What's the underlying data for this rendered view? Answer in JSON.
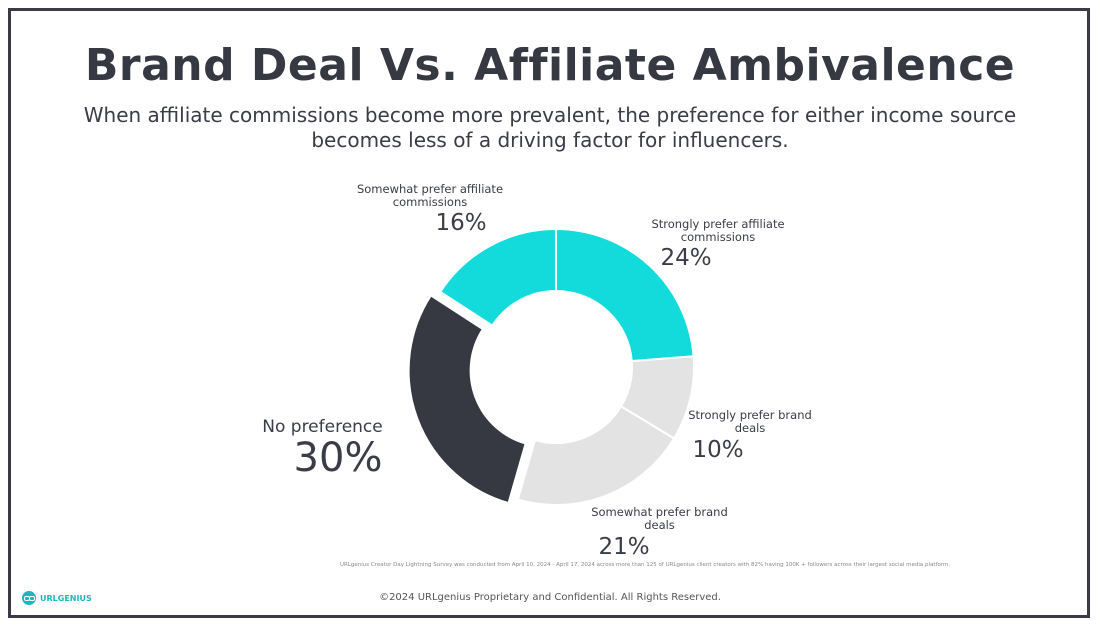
{
  "title": "Brand Deal Vs. Affiliate Ambivalence",
  "subtitle_line1": "When affiliate commissions become more prevalent, the preference for either income source",
  "subtitle_line2": "becomes less of a driving factor for influencers.",
  "chart_data": {
    "type": "pie",
    "donut": true,
    "slices": [
      {
        "label_line1": "Strongly prefer affiliate",
        "label_line2": "commissions",
        "value": 24,
        "value_label": "24%",
        "color": "#14dbdb"
      },
      {
        "label_line1": "Strongly prefer brand",
        "label_line2": "deals",
        "value": 10,
        "value_label": "10%",
        "color": "#e3e3e3"
      },
      {
        "label_line1": "Somewhat prefer brand",
        "label_line2": "deals",
        "value": 21,
        "value_label": "21%",
        "color": "#e3e3e3"
      },
      {
        "label_line1": "No preference",
        "label_line2": "",
        "value": 30,
        "value_label": "30%",
        "color": "#363842",
        "exploded": true
      },
      {
        "label_line1": "Somewhat prefer affiliate",
        "label_line2": "commissions",
        "value": 16,
        "value_label": "16%",
        "color": "#14dbdb"
      }
    ]
  },
  "footnote": "URLgenius Creator Day Lightning Survey was conducted from April 10, 2024 - April 17, 2024 across more than 125 of URLgenius client creators with 82% having 100K + followers across their largest social media platform.",
  "footer": "©2024 URLgenius Proprietary and Confidential. All Rights Reserved.",
  "logo_text": "URLGENIUS"
}
